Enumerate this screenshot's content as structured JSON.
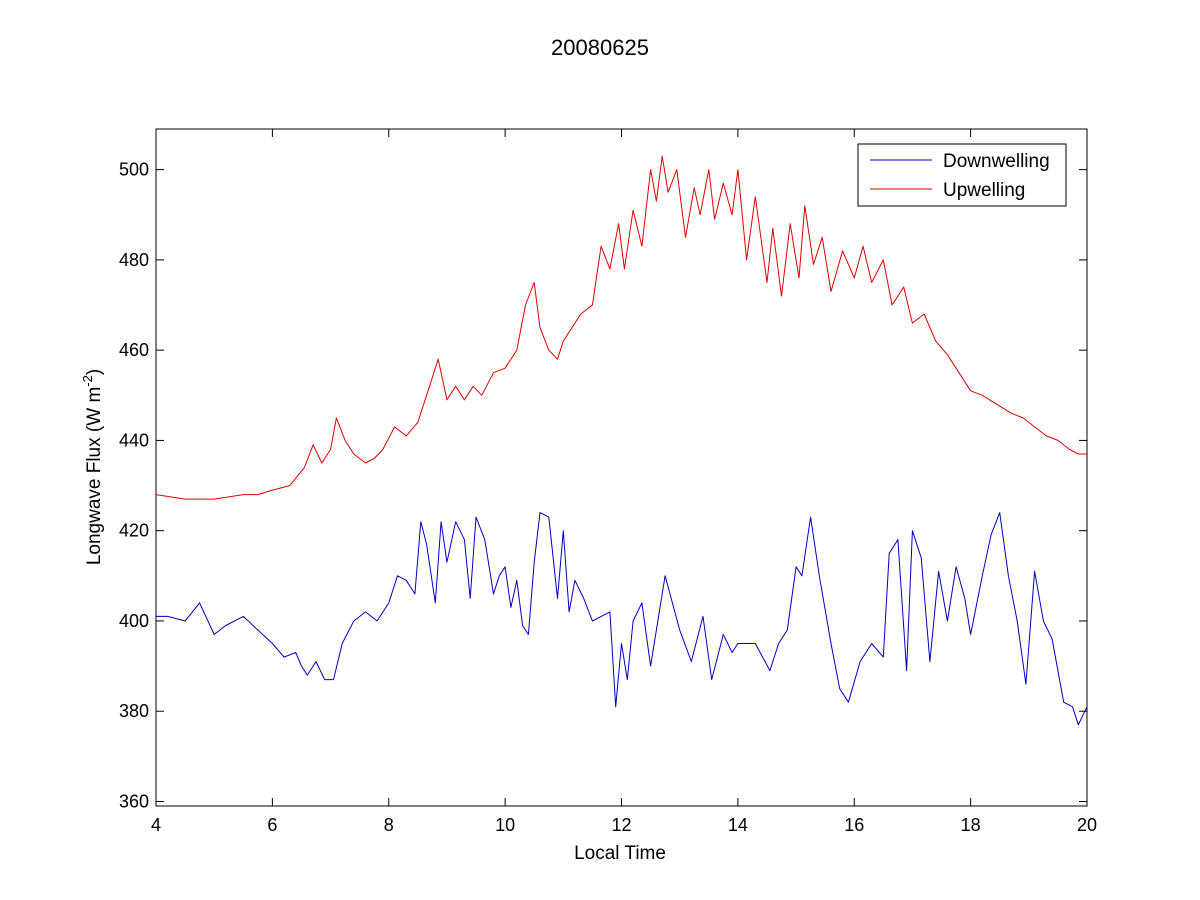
{
  "chart_data": {
    "type": "line",
    "title": "20080625",
    "xlabel": "Local Time",
    "ylabel": "Longwave Flux (W m",
    "ylabel_sup": "-2",
    "ylabel_end": ")",
    "xlim": [
      4,
      20
    ],
    "ylim": [
      359,
      509
    ],
    "xticks": [
      4,
      6,
      8,
      10,
      12,
      14,
      16,
      18,
      20
    ],
    "yticks": [
      360,
      380,
      400,
      420,
      440,
      460,
      480,
      500
    ],
    "xtick_labels": [
      "4",
      "6",
      "8",
      "10",
      "12",
      "14",
      "16",
      "18",
      "20"
    ],
    "ytick_labels": [
      "360",
      "380",
      "400",
      "420",
      "440",
      "460",
      "480",
      "500"
    ],
    "grid": false,
    "legend_position": "top-right",
    "series": [
      {
        "name": "Downwelling",
        "color": "#0000bf",
        "x": [
          4.0,
          4.2,
          4.5,
          4.75,
          5.0,
          5.2,
          5.5,
          5.75,
          6.0,
          6.2,
          6.4,
          6.5,
          6.6,
          6.75,
          6.9,
          7.05,
          7.2,
          7.4,
          7.6,
          7.8,
          8.0,
          8.15,
          8.3,
          8.45,
          8.55,
          8.65,
          8.8,
          8.9,
          9.0,
          9.15,
          9.3,
          9.4,
          9.5,
          9.65,
          9.8,
          9.9,
          10.0,
          10.1,
          10.2,
          10.3,
          10.4,
          10.5,
          10.6,
          10.75,
          10.9,
          11.0,
          11.1,
          11.2,
          11.35,
          11.5,
          11.65,
          11.8,
          11.9,
          12.0,
          12.1,
          12.2,
          12.35,
          12.5,
          12.75,
          13.0,
          13.2,
          13.4,
          13.55,
          13.75,
          13.9,
          14.0,
          14.3,
          14.55,
          14.7,
          14.85,
          15.0,
          15.1,
          15.25,
          15.4,
          15.6,
          15.75,
          15.9,
          16.1,
          16.3,
          16.5,
          16.6,
          16.75,
          16.9,
          17.0,
          17.15,
          17.3,
          17.45,
          17.6,
          17.75,
          17.9,
          18.0,
          18.2,
          18.35,
          18.5,
          18.65,
          18.8,
          18.95,
          19.1,
          19.25,
          19.4,
          19.6,
          19.75,
          19.85,
          20.0
        ],
        "values": [
          401,
          401,
          400,
          404,
          397,
          399,
          401,
          398,
          395,
          392,
          393,
          390,
          388,
          391,
          387,
          387,
          395,
          400,
          402,
          400,
          404,
          410,
          409,
          406,
          422,
          417,
          404,
          422,
          413,
          422,
          418,
          405,
          423,
          418,
          406,
          410,
          412,
          403,
          409,
          399,
          397,
          413,
          424,
          423,
          405,
          420,
          402,
          409,
          405,
          400,
          401,
          402,
          381,
          395,
          387,
          400,
          404,
          390,
          410,
          398,
          391,
          401,
          387,
          397,
          393,
          395,
          395,
          389,
          395,
          398,
          412,
          410,
          423,
          410,
          395,
          385,
          382,
          391,
          395,
          392,
          415,
          418,
          389,
          420,
          414,
          391,
          411,
          400,
          412,
          405,
          397,
          410,
          419,
          424,
          410,
          400,
          386,
          411,
          400,
          396,
          382,
          381,
          377,
          381
        ]
      },
      {
        "name": "Upwelling",
        "color": "#df0000",
        "x": [
          4.0,
          4.5,
          5.0,
          5.5,
          5.75,
          6.0,
          6.3,
          6.55,
          6.7,
          6.85,
          7.0,
          7.1,
          7.25,
          7.4,
          7.6,
          7.75,
          7.9,
          8.1,
          8.3,
          8.5,
          8.7,
          8.85,
          9.0,
          9.15,
          9.3,
          9.45,
          9.6,
          9.8,
          10.0,
          10.2,
          10.35,
          10.5,
          10.6,
          10.75,
          10.9,
          11.0,
          11.15,
          11.3,
          11.5,
          11.65,
          11.8,
          11.95,
          12.05,
          12.2,
          12.35,
          12.5,
          12.6,
          12.7,
          12.8,
          12.95,
          13.1,
          13.25,
          13.35,
          13.5,
          13.6,
          13.75,
          13.9,
          14.0,
          14.15,
          14.3,
          14.5,
          14.6,
          14.75,
          14.9,
          15.05,
          15.15,
          15.3,
          15.45,
          15.6,
          15.8,
          16.0,
          16.15,
          16.3,
          16.5,
          16.65,
          16.85,
          17.0,
          17.2,
          17.4,
          17.6,
          17.8,
          18.0,
          18.2,
          18.45,
          18.7,
          18.9,
          19.1,
          19.3,
          19.5,
          19.7,
          19.85,
          20.0
        ],
        "values": [
          428,
          427,
          427,
          428,
          428,
          429,
          430,
          434,
          439,
          435,
          438,
          445,
          440,
          437,
          435,
          436,
          438,
          443,
          441,
          444,
          452,
          458,
          449,
          452,
          449,
          452,
          450,
          455,
          456,
          460,
          470,
          475,
          465,
          460,
          458,
          462,
          465,
          468,
          470,
          483,
          478,
          488,
          478,
          491,
          483,
          500,
          493,
          503,
          495,
          500,
          485,
          496,
          490,
          500,
          489,
          497,
          490,
          500,
          480,
          494,
          475,
          487,
          472,
          488,
          476,
          492,
          479,
          485,
          473,
          482,
          476,
          483,
          475,
          480,
          470,
          474,
          466,
          468,
          462,
          459,
          455,
          451,
          450,
          448,
          446,
          445,
          443,
          441,
          440,
          438,
          437,
          437
        ]
      }
    ]
  }
}
